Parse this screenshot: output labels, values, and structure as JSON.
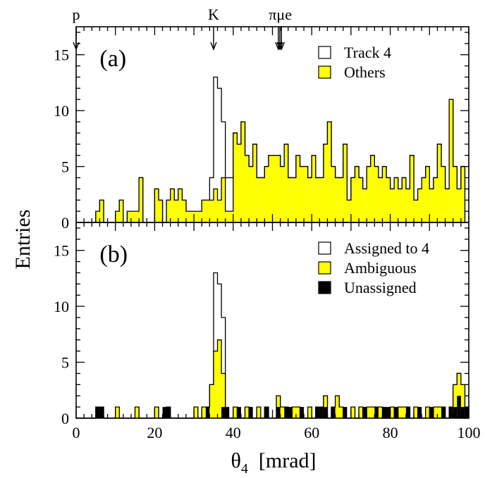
{
  "chart_data": {
    "type": "bar",
    "xlabel": "θ",
    "xlabel_sub": "4",
    "xlabel_unit": "[mrad]",
    "ylabel": "Entries",
    "xlim": [
      0,
      100
    ],
    "ylim": [
      0,
      17.5
    ],
    "bin_width": 1,
    "xticks": [
      0,
      20,
      40,
      60,
      80,
      100
    ],
    "yticks": [
      0,
      5,
      10,
      15
    ],
    "markers": [
      {
        "label": "p",
        "x": 0
      },
      {
        "label": "K",
        "x": 35
      },
      {
        "label": "πμe",
        "x": 52
      }
    ],
    "marker_arrows_x": [
      0,
      35,
      51.5,
      51.9,
      52.3
    ],
    "panels": [
      {
        "label": "(a)",
        "legend": [
          {
            "text": "Track 4",
            "color": "#ffffff"
          },
          {
            "text": "Others",
            "color": "#ffff00"
          }
        ],
        "series": [
          {
            "name": "Track 4",
            "role": "total",
            "fill": "#ffffff",
            "values": [
              0,
              0,
              0,
              0,
              0,
              1,
              2,
              0,
              0,
              0,
              1,
              2,
              0,
              1,
              1,
              1,
              4,
              0,
              0,
              0,
              3,
              2,
              0,
              2,
              3,
              2,
              3,
              2,
              1,
              1,
              1,
              1,
              2,
              2,
              4,
              13,
              12,
              9,
              4,
              4,
              8,
              7,
              9,
              6,
              5,
              7,
              4,
              4,
              5,
              6,
              6,
              6,
              5,
              7,
              4,
              4,
              6,
              5,
              5,
              4,
              6,
              4,
              4,
              7,
              9,
              5,
              4,
              4,
              7,
              2,
              4,
              5,
              4,
              3,
              5,
              6,
              5,
              4,
              5,
              4,
              3,
              4,
              3,
              4,
              3,
              6,
              2,
              3,
              4,
              5,
              3,
              4,
              7,
              5,
              3,
              11,
              5,
              3,
              5,
              0
            ]
          },
          {
            "name": "Others",
            "role": "part",
            "fill": "#ffff00",
            "values": [
              0,
              0,
              0,
              0,
              0,
              1,
              2,
              0,
              0,
              0,
              1,
              2,
              0,
              1,
              1,
              1,
              4,
              0,
              0,
              0,
              3,
              2,
              0,
              2,
              3,
              2,
              3,
              2,
              1,
              1,
              1,
              1,
              2,
              2,
              2,
              3,
              2,
              4,
              1,
              1,
              8,
              7,
              9,
              6,
              5,
              7,
              4,
              4,
              5,
              6,
              6,
              6,
              5,
              7,
              4,
              4,
              6,
              5,
              5,
              4,
              6,
              4,
              4,
              7,
              9,
              5,
              4,
              4,
              7,
              2,
              4,
              5,
              4,
              3,
              5,
              6,
              5,
              4,
              5,
              4,
              3,
              4,
              3,
              4,
              3,
              6,
              2,
              3,
              4,
              5,
              3,
              4,
              7,
              5,
              3,
              11,
              5,
              3,
              5,
              0
            ]
          }
        ]
      },
      {
        "label": "(b)",
        "legend": [
          {
            "text": "Assigned to 4",
            "color": "#ffffff"
          },
          {
            "text": "Ambiguous",
            "color": "#ffff00"
          },
          {
            "text": "Unassigned",
            "color": "#000000"
          }
        ],
        "series": [
          {
            "name": "Assigned to 4",
            "role": "total",
            "fill": "#ffffff",
            "values": [
              0,
              0,
              0,
              0,
              0,
              1,
              1,
              0,
              0,
              0,
              1,
              0,
              0,
              0,
              0,
              1,
              0,
              0,
              0,
              0,
              1,
              0,
              0,
              1,
              0,
              0,
              0,
              0,
              0,
              0,
              1,
              0,
              1,
              1,
              3,
              13,
              12,
              9,
              0,
              0,
              1,
              0,
              0,
              1,
              0,
              0,
              1,
              0,
              1,
              0,
              0,
              2,
              1,
              1,
              0,
              1,
              1,
              0,
              0,
              1,
              0,
              1,
              1,
              2,
              0,
              1,
              2,
              1,
              0,
              0,
              1,
              0,
              1,
              0,
              1,
              1,
              1,
              1,
              0,
              0,
              1,
              0,
              1,
              1,
              1,
              0,
              1,
              0,
              0,
              1,
              0,
              1,
              1,
              1,
              0,
              1,
              3,
              4,
              3,
              1
            ]
          },
          {
            "name": "Ambiguous",
            "role": "part",
            "fill": "#ffff00",
            "values": [
              0,
              0,
              0,
              0,
              0,
              1,
              1,
              0,
              0,
              0,
              1,
              0,
              0,
              0,
              0,
              1,
              0,
              0,
              0,
              0,
              1,
              0,
              0,
              1,
              0,
              0,
              0,
              0,
              0,
              0,
              1,
              0,
              1,
              1,
              3,
              6,
              7,
              4,
              0,
              0,
              1,
              0,
              0,
              1,
              0,
              0,
              1,
              0,
              1,
              0,
              0,
              2,
              1,
              1,
              0,
              1,
              1,
              0,
              0,
              1,
              0,
              1,
              1,
              2,
              0,
              1,
              2,
              1,
              0,
              0,
              1,
              0,
              1,
              0,
              1,
              1,
              1,
              1,
              0,
              0,
              1,
              0,
              1,
              1,
              1,
              0,
              1,
              0,
              0,
              1,
              0,
              1,
              1,
              1,
              0,
              1,
              3,
              4,
              3,
              1
            ]
          },
          {
            "name": "Unassigned",
            "role": "part",
            "fill": "#000000",
            "values": [
              0,
              0,
              0,
              0,
              0,
              1,
              1,
              0,
              0,
              0,
              0,
              0,
              0,
              0,
              0,
              0,
              0,
              0,
              0,
              0,
              0,
              0,
              1,
              1,
              0,
              0,
              0,
              0,
              0,
              0,
              0,
              0,
              0,
              1,
              0,
              0,
              0,
              1,
              1,
              0,
              0,
              1,
              0,
              0,
              1,
              0,
              0,
              0,
              1,
              0,
              0,
              1,
              0,
              1,
              1,
              0,
              0,
              1,
              0,
              0,
              0,
              1,
              1,
              1,
              0,
              1,
              0,
              0,
              1,
              0,
              0,
              0,
              0,
              1,
              0,
              0,
              1,
              0,
              1,
              1,
              0,
              1,
              0,
              0,
              1,
              0,
              0,
              1,
              0,
              0,
              1,
              0,
              0,
              1,
              0,
              1,
              1,
              2,
              1,
              1
            ]
          }
        ]
      }
    ]
  }
}
